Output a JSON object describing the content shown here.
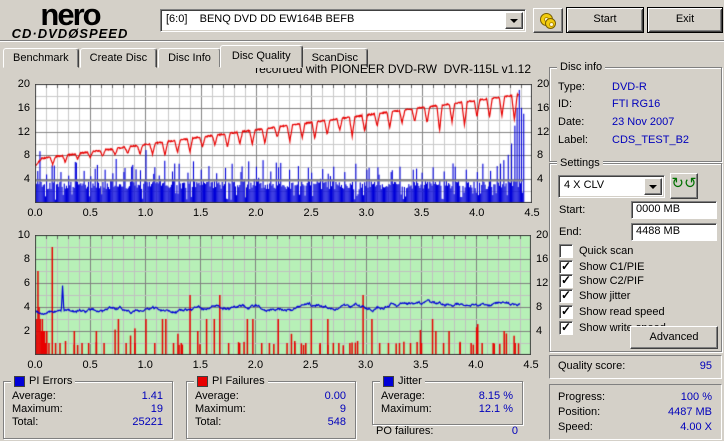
{
  "header": {
    "logo_top": "nero",
    "logo_bottom": "CD·DVDØSPEED",
    "drive_select": "[6:0]    BENQ DVD DD EW164B BEFB",
    "eject_icon": "disc-icon",
    "start_label": "Start",
    "exit_label": "Exit"
  },
  "tabs": [
    {
      "label": "Benchmark",
      "active": false
    },
    {
      "label": "Create Disc",
      "active": false
    },
    {
      "label": "Disc Info",
      "active": false
    },
    {
      "label": "Disc Quality",
      "active": true
    },
    {
      "label": "ScanDisc",
      "active": false
    }
  ],
  "chart_title": "recorded with PIONEER DVD-RW  DVR-115L v1.12",
  "chart_data": [
    {
      "type": "bar+line composite (PI Errors / read & write speed)",
      "background": "#ffffff",
      "grid_minor": "#c9c9c9",
      "grid_major": "#828282",
      "x": {
        "min": 0,
        "max": 4.5,
        "minor": 0.1,
        "major": 0.5,
        "data_end": 4.42,
        "tick_labels": [
          "0.0",
          "0.5",
          "1.0",
          "1.5",
          "2.0",
          "2.5",
          "3.0",
          "3.5",
          "4.0",
          "4.5"
        ]
      },
      "y_left": {
        "min": 0,
        "max": 20,
        "minor": 2,
        "major": 4,
        "ticks": [
          4,
          8,
          12,
          16,
          20
        ]
      },
      "y_right": {
        "min": 0,
        "max": 20,
        "ticks": [
          4,
          8,
          12,
          16,
          20
        ]
      },
      "series": [
        {
          "name": "PI Errors",
          "kind": "dense_bars",
          "color": "#0000d8",
          "seed": 42,
          "step": 0.01,
          "base_min": 2.3,
          "base_max": 3.7,
          "gap_rate": 0.1,
          "spike_rate": 0.08,
          "spike_max": 6.8,
          "average": 1.41,
          "maximum": 19,
          "total": 25221,
          "spikes": [
            [
              0.04,
              8.7
            ],
            [
              0.1,
              4.8
            ],
            [
              0.17,
              6.3
            ],
            [
              0.23,
              5.2
            ],
            [
              0.3,
              4.6
            ],
            [
              0.36,
              6.9
            ],
            [
              0.44,
              5.4
            ],
            [
              0.5,
              4.5
            ],
            [
              0.56,
              6.4
            ],
            [
              0.63,
              5.6
            ],
            [
              0.7,
              5.0
            ],
            [
              0.73,
              7.4
            ],
            [
              0.8,
              5.2
            ],
            [
              0.87,
              6.1
            ],
            [
              0.95,
              5.5
            ],
            [
              1.0,
              8.9
            ],
            [
              1.08,
              6.0
            ],
            [
              1.17,
              7.1
            ],
            [
              1.24,
              5.3
            ],
            [
              1.3,
              6.6
            ],
            [
              1.38,
              5.1
            ],
            [
              1.43,
              7.0
            ],
            [
              1.5,
              5.6
            ],
            [
              1.57,
              6.2
            ],
            [
              1.64,
              5.0
            ],
            [
              1.72,
              5.9
            ],
            [
              1.78,
              6.6
            ],
            [
              1.86,
              5.2
            ],
            [
              1.93,
              7.0
            ],
            [
              2.0,
              6.1
            ],
            [
              2.06,
              7.2
            ],
            [
              2.13,
              5.3
            ],
            [
              2.2,
              6.0
            ],
            [
              2.3,
              5.6
            ],
            [
              2.38,
              6.2
            ],
            [
              2.5,
              5.1
            ],
            [
              2.6,
              5.7
            ],
            [
              2.7,
              6.1
            ],
            [
              2.8,
              5.2
            ],
            [
              2.9,
              6.6
            ],
            [
              3.0,
              5.6
            ],
            [
              3.1,
              6.0
            ],
            [
              3.22,
              5.2
            ],
            [
              3.3,
              6.1
            ],
            [
              3.42,
              5.6
            ],
            [
              3.5,
              5.1
            ],
            [
              3.6,
              6.0
            ],
            [
              3.7,
              5.3
            ],
            [
              3.8,
              6.1
            ],
            [
              3.9,
              5.6
            ],
            [
              4.0,
              5.2
            ],
            [
              4.05,
              6.6
            ],
            [
              4.12,
              5.4
            ],
            [
              4.18,
              6.2
            ],
            [
              4.24,
              7.2
            ],
            [
              4.28,
              8.1
            ],
            [
              4.31,
              10.0
            ],
            [
              4.34,
              13.0
            ],
            [
              4.36,
              16.0
            ],
            [
              4.38,
              19.0
            ],
            [
              4.4,
              16.0
            ],
            [
              4.42,
              15.0
            ]
          ]
        },
        {
          "name": "Read speed",
          "kind": "hline",
          "color": "#8c8c8c",
          "value": 3.9,
          "x_end": 4.42
        },
        {
          "name": "Write speed",
          "kind": "ramp_line",
          "color": "#e80000",
          "seed": 13,
          "y_start": 6.2,
          "x_knee": 0.06,
          "y_knee": 7.5,
          "x_end": 4.38,
          "y_end": 18.2,
          "dip_first": 0.16,
          "dip_interval": 0.113,
          "dip_depth_min": 1.1,
          "dip_depth_max": 3.7,
          "dip_halfwidth": 0.025
        }
      ]
    },
    {
      "type": "bar+line composite (PI Failures / jitter)",
      "background": "#b7f0b7",
      "grid_minor": "#c0c0c0",
      "grid_major": "#808080",
      "x": {
        "min": 0,
        "max": 4.5,
        "minor": 0.1,
        "major": 0.5,
        "data_end": 4.4,
        "tick_labels": [
          "0.0",
          "0.5",
          "1.0",
          "1.5",
          "2.0",
          "2.5",
          "3.0",
          "3.5",
          "4.0",
          "4.5"
        ]
      },
      "y_left": {
        "min": 0,
        "max": 10,
        "minor": 1,
        "major": 2,
        "ticks": [
          2,
          4,
          6,
          8,
          10
        ]
      },
      "y_right": {
        "min": 0,
        "max": 20,
        "ticks": [
          4,
          8,
          12,
          16,
          20
        ]
      },
      "series": [
        {
          "name": "PI Failures",
          "kind": "sparse_bars",
          "color": "#e80000",
          "seed": 7,
          "step": 0.01,
          "p_small": 0.085,
          "p_med": 0.018,
          "average": 0.0,
          "maximum": 9,
          "total": 548,
          "bars": [
            [
              0.01,
              3
            ],
            [
              0.02,
              7
            ],
            [
              0.03,
              4
            ],
            [
              0.04,
              3
            ],
            [
              0.05,
              2
            ],
            [
              0.06,
              3
            ],
            [
              0.07,
              2
            ],
            [
              0.08,
              2
            ],
            [
              0.09,
              1
            ],
            [
              0.1,
              2
            ],
            [
              0.12,
              1
            ],
            [
              0.15,
              9
            ],
            [
              0.18,
              1
            ],
            [
              0.22,
              1
            ],
            [
              0.35,
              2
            ],
            [
              0.42,
              1
            ],
            [
              0.48,
              1
            ],
            [
              0.55,
              2
            ],
            [
              0.62,
              1
            ],
            [
              0.75,
              3
            ],
            [
              0.82,
              1
            ],
            [
              0.9,
              1
            ],
            [
              1.0,
              3
            ],
            [
              1.08,
              1
            ],
            [
              1.15,
              3
            ],
            [
              1.18,
              3
            ],
            [
              1.25,
              1
            ],
            [
              1.32,
              1
            ],
            [
              1.4,
              5
            ],
            [
              1.47,
              2
            ],
            [
              1.55,
              3
            ],
            [
              1.62,
              3
            ],
            [
              1.67,
              5
            ],
            [
              1.75,
              1
            ],
            [
              1.85,
              1
            ],
            [
              1.92,
              3
            ],
            [
              1.97,
              3
            ],
            [
              2.05,
              1
            ],
            [
              2.12,
              1
            ],
            [
              2.2,
              3
            ],
            [
              2.28,
              1
            ],
            [
              2.35,
              1
            ],
            [
              2.45,
              1
            ],
            [
              2.5,
              3
            ],
            [
              2.58,
              1
            ],
            [
              2.65,
              3
            ],
            [
              2.75,
              1
            ],
            [
              2.85,
              1
            ],
            [
              2.97,
              5
            ],
            [
              3.05,
              3
            ],
            [
              3.12,
              1
            ],
            [
              3.2,
              1
            ],
            [
              3.3,
              1
            ],
            [
              3.4,
              1
            ],
            [
              3.5,
              1
            ],
            [
              3.6,
              3
            ],
            [
              3.63,
              2
            ],
            [
              3.7,
              1
            ],
            [
              3.75,
              2
            ],
            [
              3.85,
              1
            ],
            [
              3.95,
              1
            ],
            [
              4.05,
              1
            ],
            [
              4.15,
              1
            ],
            [
              4.25,
              2
            ],
            [
              4.35,
              1
            ]
          ]
        },
        {
          "name": "Jitter",
          "kind": "noisy_line",
          "color": "#0000d8",
          "seed": 99,
          "y_start": 3.6,
          "y_end": 4.35,
          "noise": 0.17,
          "spike_x": 0.25,
          "spike_h": 2.1,
          "x_end": 4.4,
          "average_pct": "8.15 %",
          "maximum_pct": "12.1 %"
        }
      ]
    }
  ],
  "disc_info": {
    "title": "Disc info",
    "rows": [
      {
        "label": "Type:",
        "value": "DVD-R"
      },
      {
        "label": "ID:",
        "value": "FTI RG16"
      },
      {
        "label": "Date:",
        "value": "23 Nov 2007"
      },
      {
        "label": "Label:",
        "value": "CDS_TEST_B2"
      }
    ]
  },
  "settings": {
    "title": "Settings",
    "speed_select": "4 X CLV",
    "refresh_icon": "refresh-icon",
    "start_label": "Start:",
    "start_value": "0000 MB",
    "end_label": "End:",
    "end_value": "4488 MB",
    "checkboxes": [
      {
        "label": "Quick scan",
        "checked": false
      },
      {
        "label": "Show C1/PIE",
        "checked": true
      },
      {
        "label": "Show C2/PIF",
        "checked": true
      },
      {
        "label": "Show jitter",
        "checked": true
      },
      {
        "label": "Show read speed",
        "checked": true
      },
      {
        "label": "Show write speed",
        "checked": true
      }
    ],
    "advanced_label": "Advanced"
  },
  "quality": {
    "label": "Quality score:",
    "value": "95"
  },
  "progress": {
    "rows": [
      {
        "label": "Progress:",
        "value": "100 %"
      },
      {
        "label": "Position:",
        "value": "4487 MB"
      },
      {
        "label": "Speed:",
        "value": "4.00 X"
      }
    ]
  },
  "stats": {
    "pi_errors": {
      "title": "PI Errors",
      "color": "#0000d8",
      "rows": [
        [
          "Average:",
          "1.41"
        ],
        [
          "Maximum:",
          "19"
        ],
        [
          "Total:",
          "25221"
        ]
      ]
    },
    "pi_failures": {
      "title": "PI Failures",
      "color": "#e80000",
      "rows": [
        [
          "Average:",
          "0.00"
        ],
        [
          "Maximum:",
          "9"
        ],
        [
          "Total:",
          "548"
        ]
      ]
    },
    "jitter": {
      "title": "Jitter",
      "color": "#0000d8",
      "rows": [
        [
          "Average:",
          "8.15 %"
        ],
        [
          "Maximum:",
          "12.1 %"
        ]
      ]
    },
    "po_failures": {
      "label": "PO failures:",
      "value": "0"
    }
  }
}
